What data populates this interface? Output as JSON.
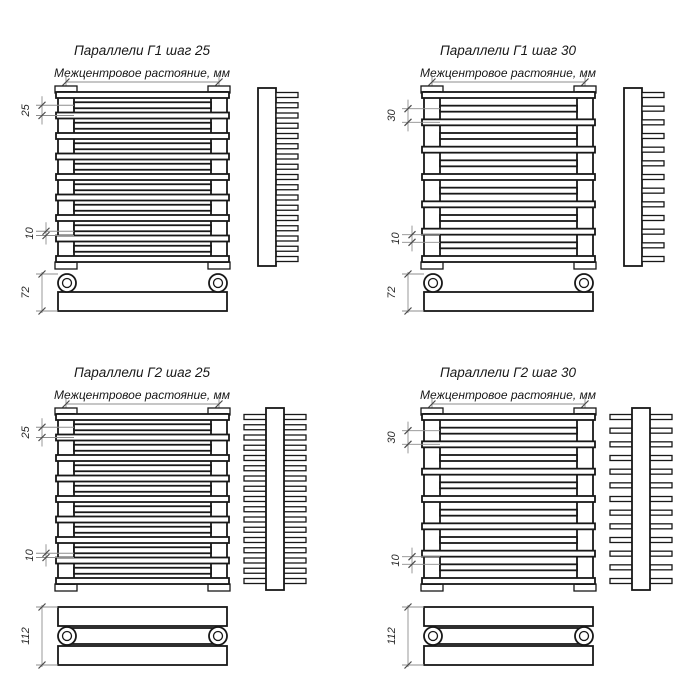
{
  "drawing": {
    "background_color": "#ffffff",
    "line_color": "#181818",
    "dimension_line_color": "#8d8d8d",
    "quadrants": [
      {
        "id": "g1-step-25",
        "title": "Параллели Г1 шаг 25",
        "subtitle": "Межцентровое растояние, мм",
        "step_dim": "25",
        "gap_dim": "10",
        "bottom_dim": "72",
        "bar_count": 17,
        "side": "single",
        "bottom": "single"
      },
      {
        "id": "g1-step-30",
        "title": "Параллели Г1 шаг 30",
        "subtitle": "Межцентровое растояние, мм",
        "step_dim": "30",
        "gap_dim": "10",
        "bottom_dim": "72",
        "bar_count": 13,
        "side": "single",
        "bottom": "single"
      },
      {
        "id": "g2-step-25",
        "title": "Параллели Г2 шаг 25",
        "subtitle": "Межцентровое растояние, мм",
        "step_dim": "25",
        "gap_dim": "10",
        "bottom_dim": "112",
        "bar_count": 17,
        "side": "double",
        "bottom": "double"
      },
      {
        "id": "g2-step-30",
        "title": "Параллели Г2 шаг 30",
        "subtitle": "Межцентровое растояние, мм",
        "step_dim": "30",
        "gap_dim": "10",
        "bottom_dim": "112",
        "bar_count": 13,
        "side": "double",
        "bottom": "double"
      }
    ]
  }
}
